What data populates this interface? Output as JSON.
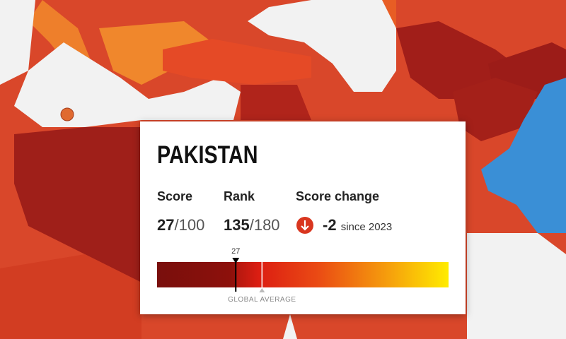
{
  "card": {
    "title": "PAKISTAN",
    "score": {
      "label": "Score",
      "value": 27,
      "out_of": "/100"
    },
    "rank": {
      "label": "Rank",
      "value": 135,
      "out_of": "/180"
    },
    "change": {
      "label": "Score change",
      "value": -2,
      "since": "since 2023"
    },
    "bar": {
      "range": [
        0,
        100
      ],
      "marker": 27,
      "global_average": {
        "label": "GLOBAL AVERAGE",
        "value": 36
      }
    }
  }
}
